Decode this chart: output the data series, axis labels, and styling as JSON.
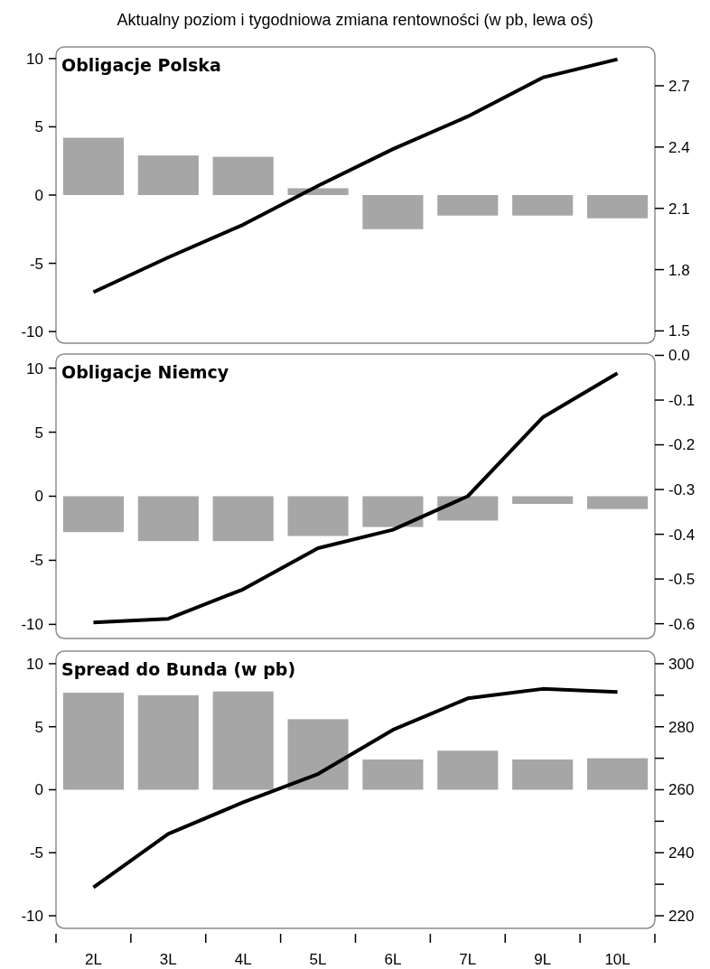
{
  "chart_data": [
    {
      "type": "bar",
      "title": "Obligacje Polska",
      "annotations": [
        "Aktualny poziom i tygodniowa zmiana rentowności (w pb, lewa oś)"
      ],
      "categories": [
        null,
        null,
        null,
        null,
        null,
        null,
        null,
        null
      ],
      "tick_labels": "y",
      "grid": false,
      "ylim": [
        -10.85,
        10.85
      ],
      "yticks": [
        -10,
        -5,
        0,
        5,
        10
      ],
      "y2lim": [
        1.44,
        2.89
      ],
      "y2ticks": [
        1.5,
        1.8,
        2.1,
        2.4,
        2.7
      ],
      "series": [
        {
          "color": "#a6a6a6",
          "values": [
            4.2,
            2.9,
            2.8,
            0.5,
            -2.5,
            -1.5,
            -1.5,
            -1.7
          ]
        },
        {
          "type": "line",
          "axis": "y2",
          "color": "#000000",
          "values": [
            1.69,
            1.86,
            2.02,
            2.21,
            2.39,
            2.55,
            2.74,
            2.83
          ]
        }
      ]
    },
    {
      "type": "bar",
      "title": "Obligacje Niemcy",
      "categories": [
        null,
        null,
        null,
        null,
        null,
        null,
        null,
        null
      ],
      "tick_labels": "y",
      "grid": false,
      "ylim": [
        -11.1,
        11.1
      ],
      "yticks": [
        -10,
        -5,
        0,
        5,
        10
      ],
      "y2lim": [
        -0.633,
        0.003
      ],
      "y2ticks": [
        {
          "value": -0.6,
          "label": "-0.6"
        },
        {
          "value": -0.5,
          "label": "-0.5"
        },
        {
          "value": -0.4,
          "label": "-0.4"
        },
        {
          "value": -0.3,
          "label": "-0.3"
        },
        {
          "value": -0.2,
          "label": "-0.2"
        },
        {
          "value": -0.1,
          "label": "-0.1"
        },
        {
          "value": 0,
          "label": "0.0"
        }
      ],
      "series": [
        {
          "color": "#a6a6a6",
          "values": [
            -2.8,
            -3.5,
            -3.5,
            -3.1,
            -2.4,
            -1.9,
            -0.6,
            -1.0
          ]
        },
        {
          "type": "line",
          "axis": "y2",
          "color": "#000000",
          "values": [
            -0.597,
            -0.589,
            -0.523,
            -0.431,
            -0.39,
            -0.315,
            -0.139,
            -0.04
          ]
        }
      ]
    },
    {
      "type": "bar",
      "title": "Spread do Bunda (w pb)",
      "categories": [
        "2L",
        "3L",
        "4L",
        "5L",
        "6L",
        "7L",
        "9L",
        "10L"
      ],
      "grid": false,
      "ylim": [
        -11,
        11
      ],
      "yticks": [
        -10,
        -5,
        0,
        5,
        10
      ],
      "y2lim": [
        216,
        304
      ],
      "y2ticks": [
        220,
        {
          "value": 230,
          "label": null
        },
        240,
        {
          "value": 250,
          "label": null
        },
        260,
        {
          "value": 270,
          "label": null
        },
        280,
        {
          "value": 290,
          "label": null
        },
        300
      ],
      "series": [
        {
          "color": "#a6a6a6",
          "values": [
            7.7,
            7.5,
            7.8,
            5.6,
            2.4,
            3.1,
            2.4,
            2.5
          ]
        },
        {
          "type": "line",
          "axis": "y2",
          "color": "#000000",
          "values": [
            229,
            246,
            256,
            265,
            279,
            289,
            292,
            291
          ]
        }
      ]
    }
  ]
}
